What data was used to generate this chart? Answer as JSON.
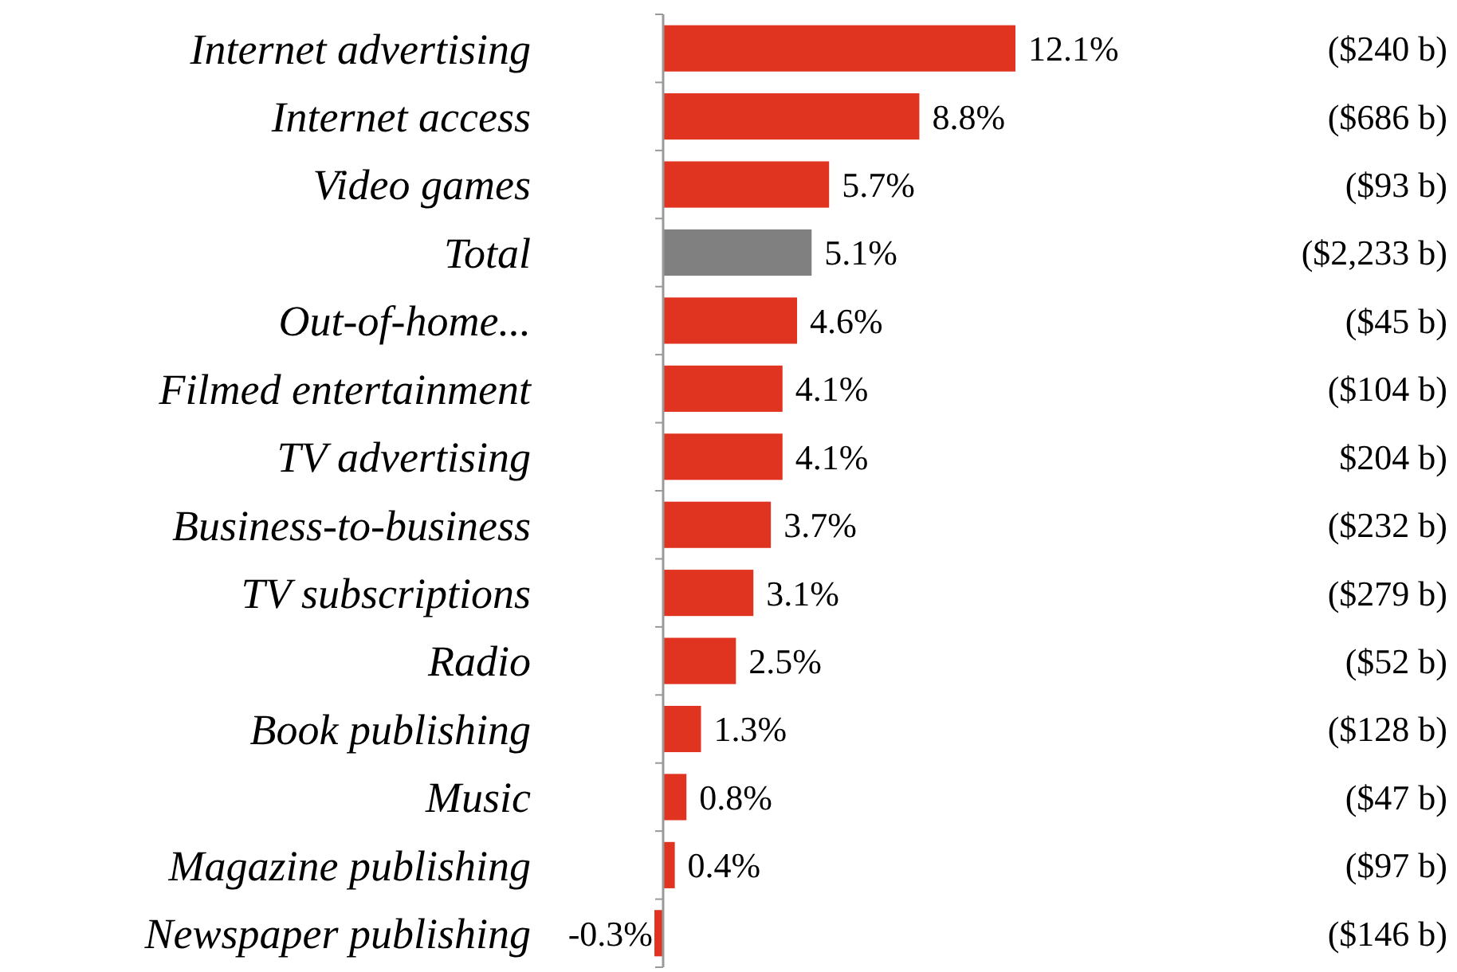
{
  "chart_data": {
    "type": "bar",
    "orientation": "horizontal",
    "categories": [
      "Internet advertising",
      "Internet access",
      "Video games",
      "Total",
      "Out-of-home...",
      "Filmed entertainment",
      "TV advertising",
      "Business-to-business",
      "TV subscriptions",
      "Radio",
      "Book publishing",
      "Music",
      "Magazine publishing",
      "Newspaper publishing"
    ],
    "values": [
      12.1,
      8.8,
      5.7,
      5.1,
      4.6,
      4.1,
      4.1,
      3.7,
      3.1,
      2.5,
      1.3,
      0.8,
      0.4,
      -0.3
    ],
    "colors": [
      "#e03320",
      "#e03320",
      "#e03320",
      "#808080",
      "#e03320",
      "#e03320",
      "#e03320",
      "#e03320",
      "#e03320",
      "#e03320",
      "#e03320",
      "#e03320",
      "#e03320",
      "#e03320"
    ],
    "value_labels": [
      "12.1%",
      "8.8%",
      "5.7%",
      "5.1%",
      "4.6%",
      "4.1%",
      "4.1%",
      "3.7%",
      "3.1%",
      "2.5%",
      "1.3%",
      "0.8%",
      "0.4%",
      "-0.3%"
    ],
    "annotations": [
      "($240 b)",
      "($686 b)",
      "($93 b)",
      "($2,233 b)",
      "($45 b)",
      "($104 b)",
      "$204 b)",
      "($232 b)",
      "($279 b)",
      "($52 b)",
      "($128 b)",
      "($47 b)",
      "($97 b)",
      "($146 b)"
    ]
  }
}
